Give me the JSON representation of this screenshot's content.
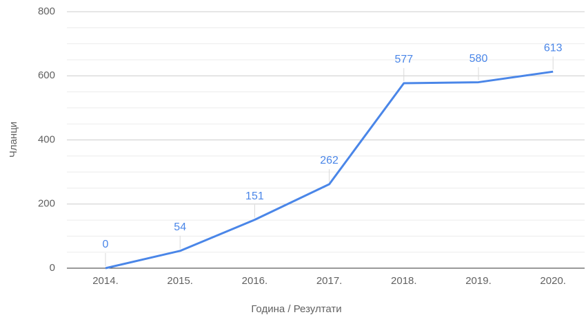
{
  "chart_data": {
    "type": "line",
    "x_label": "Година / Резултати",
    "y_label": "Чланци",
    "categories": [
      "2014.",
      "2015.",
      "2016.",
      "2017.",
      "2018.",
      "2019.",
      "2020."
    ],
    "series": [
      {
        "name": "Чланци",
        "color": "#4a86e8",
        "values": [
          0,
          54,
          151,
          262,
          577,
          580,
          613
        ]
      }
    ],
    "ylim": [
      0,
      800
    ],
    "yticks": [
      0,
      200,
      400,
      600,
      800
    ],
    "grid": true,
    "data_labels": true
  }
}
